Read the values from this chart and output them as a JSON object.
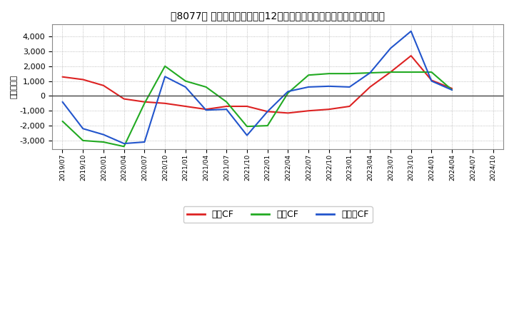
{
  "title": "［8077］ キャッシュフローの12か月移動合計の対前年同期増減額の推移",
  "ylabel": "（百万円）",
  "background_color": "#ffffff",
  "plot_bg_color": "#ffffff",
  "grid_color": "#999999",
  "ylim": [
    -3600,
    4800
  ],
  "yticks": [
    -3000,
    -2000,
    -1000,
    0,
    1000,
    2000,
    3000,
    4000
  ],
  "x_labels": [
    "2019/07",
    "2019/10",
    "2020/01",
    "2020/04",
    "2020/07",
    "2020/10",
    "2021/01",
    "2021/04",
    "2021/07",
    "2021/10",
    "2022/01",
    "2022/04",
    "2022/07",
    "2022/10",
    "2023/01",
    "2023/04",
    "2023/07",
    "2023/10",
    "2024/01",
    "2024/04",
    "2024/07",
    "2024/10"
  ],
  "series": {
    "営業CF": {
      "color": "#dd2222",
      "values": [
        1280,
        1100,
        700,
        -200,
        -400,
        -500,
        -700,
        -900,
        -700,
        -700,
        -1050,
        -1150,
        -1000,
        -900,
        -700,
        600,
        1600,
        2700,
        1050,
        500,
        null,
        null
      ]
    },
    "投資CF": {
      "color": "#22aa22",
      "values": [
        -1700,
        -3000,
        -3100,
        -3400,
        -500,
        2000,
        1000,
        600,
        -400,
        -2050,
        -2000,
        200,
        1400,
        1500,
        1500,
        1550,
        1600,
        1600,
        1600,
        400,
        null,
        null
      ]
    },
    "フリーCF": {
      "color": "#2255cc",
      "values": [
        -400,
        -2200,
        -2600,
        -3200,
        -3100,
        1300,
        600,
        -950,
        -900,
        -2650,
        -1050,
        300,
        600,
        650,
        600,
        1550,
        3200,
        4350,
        1000,
        400,
        null,
        null
      ]
    }
  },
  "legend_labels": [
    "営業CF",
    "投資CF",
    "フリーCF"
  ],
  "legend_colors": [
    "#dd2222",
    "#22aa22",
    "#2255cc"
  ]
}
